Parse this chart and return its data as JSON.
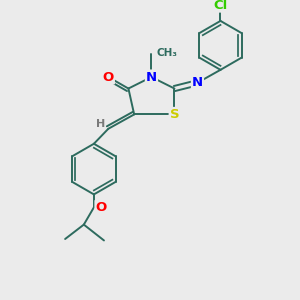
{
  "background_color": "#ebebeb",
  "bond_color": "#2d6b5e",
  "atom_colors": {
    "O": "#ff0000",
    "N": "#0000ff",
    "S": "#cccc00",
    "Cl": "#33cc00",
    "H": "#7a7a7a",
    "C": "#2d6b5e"
  },
  "figsize": [
    3.0,
    3.0
  ],
  "dpi": 100
}
